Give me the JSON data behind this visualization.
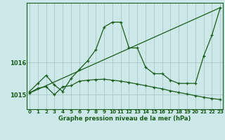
{
  "title": "Graphe pression niveau de la mer (hPa)",
  "background_color": "#cce8e8",
  "line_color": "#1a5c1a",
  "grid_color": "#a8c8c8",
  "x_labels": [
    "0",
    "1",
    "2",
    "3",
    "4",
    "5",
    "6",
    "7",
    "8",
    "9",
    "10",
    "11",
    "12",
    "13",
    "14",
    "15",
    "16",
    "17",
    "18",
    "19",
    "20",
    "21",
    "22",
    "23"
  ],
  "y_ticks": [
    1015,
    1016
  ],
  "ylim": [
    1014.55,
    1017.85
  ],
  "xlim": [
    -0.3,
    23.3
  ],
  "series1_x": [
    0,
    1,
    2,
    3,
    4,
    5,
    6,
    7,
    8,
    9,
    10,
    11,
    12,
    13,
    14,
    15,
    16,
    17,
    18,
    19,
    20,
    21,
    22,
    23
  ],
  "series1_y": [
    1015.1,
    1015.35,
    1015.6,
    1015.3,
    1015.1,
    1015.5,
    1015.78,
    1016.05,
    1016.4,
    1017.1,
    1017.25,
    1017.25,
    1016.45,
    1016.45,
    1015.85,
    1015.65,
    1015.65,
    1015.45,
    1015.35,
    1015.35,
    1015.35,
    1016.2,
    1016.85,
    1017.7
  ],
  "series2_x": [
    0,
    1,
    2,
    3,
    4,
    5,
    6,
    7,
    8,
    9,
    10,
    11,
    12,
    13,
    14,
    15,
    16,
    17,
    18,
    19,
    20,
    21,
    22,
    23
  ],
  "series2_y": [
    1015.05,
    1015.2,
    1015.25,
    1015.0,
    1015.25,
    1015.28,
    1015.42,
    1015.45,
    1015.47,
    1015.48,
    1015.45,
    1015.42,
    1015.38,
    1015.33,
    1015.28,
    1015.23,
    1015.18,
    1015.12,
    1015.07,
    1015.02,
    1014.97,
    1014.92,
    1014.88,
    1014.85
  ],
  "series3_x": [
    0,
    23
  ],
  "series3_y": [
    1015.05,
    1017.7
  ]
}
